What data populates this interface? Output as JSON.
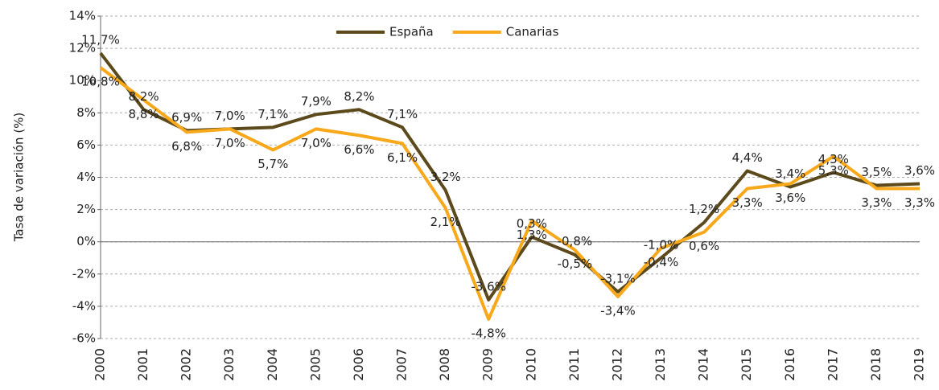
{
  "chart_data": {
    "type": "line",
    "y_label": "Tasa de variación (%)",
    "categories": [
      "2000",
      "2001",
      "2002",
      "2003",
      "2004",
      "2005",
      "2006",
      "2007",
      "2008",
      "2009",
      "2010",
      "2011",
      "2012",
      "2013",
      "2014",
      "2015",
      "2016",
      "2017",
      "2018",
      "2019"
    ],
    "series": [
      {
        "name": "España",
        "color": "#5c4a1c",
        "values": [
          11.7,
          8.2,
          6.9,
          7.0,
          7.1,
          7.9,
          8.2,
          7.1,
          3.2,
          -3.6,
          0.3,
          -0.8,
          -3.1,
          -1.0,
          1.2,
          4.4,
          3.4,
          4.3,
          3.5,
          3.6
        ],
        "value_labels": [
          "11,7%",
          "8,2%",
          "6,9%",
          "7,0%",
          "7,1%",
          "7,9%",
          "8,2%",
          "7,1%",
          "3,2%",
          "-3,6%",
          "0,3%",
          "-0,8%",
          "-3,1%",
          "-1,0%",
          "1,2%",
          "4,4%",
          "3,4%",
          "4,3%",
          "3,5%",
          "3,6%"
        ]
      },
      {
        "name": "Canarias",
        "color": "#f7a81b",
        "values": [
          10.8,
          8.8,
          6.8,
          7.0,
          5.7,
          7.0,
          6.6,
          6.1,
          2.1,
          -4.8,
          1.3,
          -0.5,
          -3.4,
          -0.4,
          0.6,
          3.3,
          3.6,
          5.3,
          3.3,
          3.3
        ],
        "value_labels": [
          "10,8%",
          "8,8%",
          "6,8%",
          "7,0%",
          "5,7%",
          "7,0%",
          "6,6%",
          "6,1%",
          "2,1%",
          "-4,8%",
          "1,3%",
          "-0,5%",
          "-3,4%",
          "-0,4%",
          "0,6%",
          "3,3%",
          "3,6%",
          "5,3%",
          "3,3%",
          "3,3%"
        ]
      }
    ],
    "ylim": [
      -6,
      14
    ],
    "yticks": [
      {
        "value": -6,
        "label": "-6%"
      },
      {
        "value": -4,
        "label": "-4%"
      },
      {
        "value": -2,
        "label": "-2%"
      },
      {
        "value": 0,
        "label": "0%"
      },
      {
        "value": 2,
        "label": "2%"
      },
      {
        "value": 4,
        "label": "4%"
      },
      {
        "value": 6,
        "label": "6%"
      },
      {
        "value": 8,
        "label": "8%"
      },
      {
        "value": 10,
        "label": "10%"
      },
      {
        "value": 12,
        "label": "12%"
      },
      {
        "value": 14,
        "label": "14%"
      }
    ],
    "grid": true,
    "legend": "top"
  }
}
